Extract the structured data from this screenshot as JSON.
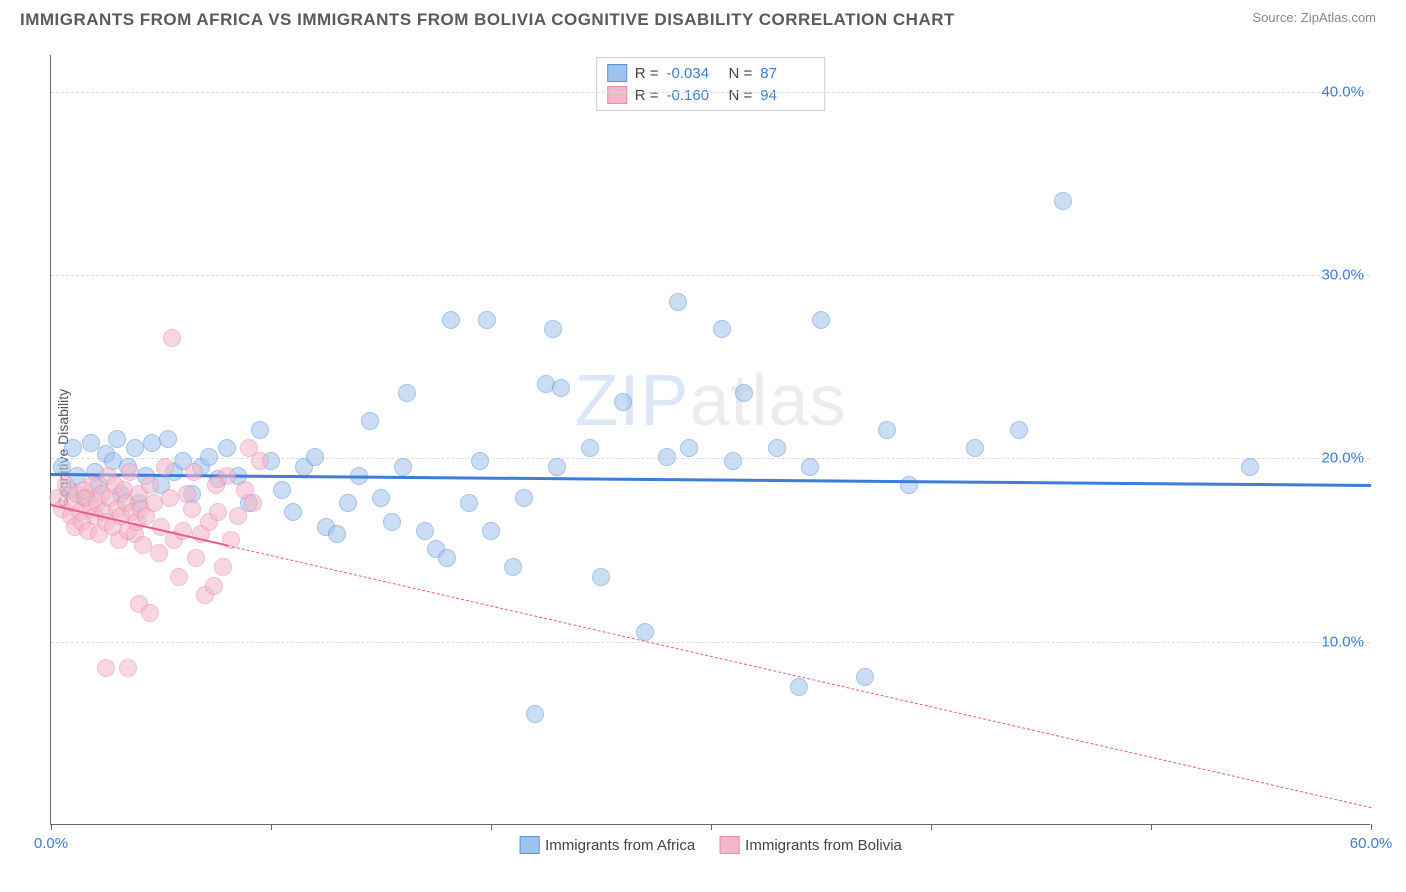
{
  "title": "IMMIGRANTS FROM AFRICA VS IMMIGRANTS FROM BOLIVIA COGNITIVE DISABILITY CORRELATION CHART",
  "source": "Source: ZipAtlas.com",
  "ylabel": "Cognitive Disability",
  "watermark_bold": "ZIP",
  "watermark_thin": "atlas",
  "chart": {
    "type": "scatter",
    "background_color": "#ffffff",
    "grid_color": "#dcdcdc",
    "axis_color": "#666666",
    "xlim": [
      0,
      60
    ],
    "ylim": [
      0,
      42
    ],
    "ytick_values": [
      10,
      20,
      30,
      40
    ],
    "ytick_labels": [
      "10.0%",
      "20.0%",
      "30.0%",
      "40.0%"
    ],
    "xtick_values": [
      0,
      10,
      20,
      30,
      40,
      50,
      60
    ],
    "xtick_labels_shown": {
      "0": "0.0%",
      "60": "60.0%"
    },
    "label_color": "#3b7dd8",
    "label_fontsize": 15,
    "title_fontsize": 17,
    "point_radius": 9,
    "point_opacity": 0.55,
    "series": [
      {
        "name": "Immigrants from Africa",
        "fill_color": "#9fc3ee",
        "stroke_color": "#5a94d8",
        "trend_color": "#3b7dd8",
        "trend_width": 3,
        "trend_dash": "solid",
        "R": "-0.034",
        "N": "87",
        "trend_start": [
          0,
          19.2
        ],
        "trend_end": [
          60,
          18.6
        ],
        "points": [
          [
            0.5,
            19.5
          ],
          [
            0.8,
            18.2
          ],
          [
            1.0,
            20.5
          ],
          [
            1.2,
            19.0
          ],
          [
            1.5,
            17.8
          ],
          [
            1.8,
            20.8
          ],
          [
            2.0,
            19.2
          ],
          [
            2.2,
            18.5
          ],
          [
            2.5,
            20.2
          ],
          [
            2.8,
            19.8
          ],
          [
            3.0,
            21.0
          ],
          [
            3.2,
            18.0
          ],
          [
            3.5,
            19.5
          ],
          [
            3.8,
            20.5
          ],
          [
            4.0,
            17.5
          ],
          [
            4.3,
            19.0
          ],
          [
            4.6,
            20.8
          ],
          [
            5.0,
            18.5
          ],
          [
            5.3,
            21.0
          ],
          [
            5.6,
            19.2
          ],
          [
            6.0,
            19.8
          ],
          [
            6.4,
            18.0
          ],
          [
            6.8,
            19.5
          ],
          [
            7.2,
            20.0
          ],
          [
            7.6,
            18.8
          ],
          [
            8.0,
            20.5
          ],
          [
            8.5,
            19.0
          ],
          [
            9.0,
            17.5
          ],
          [
            9.5,
            21.5
          ],
          [
            10.0,
            19.8
          ],
          [
            10.5,
            18.2
          ],
          [
            11.0,
            17.0
          ],
          [
            11.5,
            19.5
          ],
          [
            12.0,
            20.0
          ],
          [
            12.5,
            16.2
          ],
          [
            13.0,
            15.8
          ],
          [
            13.5,
            17.5
          ],
          [
            14.0,
            19.0
          ],
          [
            14.5,
            22.0
          ],
          [
            15.0,
            17.8
          ],
          [
            15.5,
            16.5
          ],
          [
            16.0,
            19.5
          ],
          [
            16.2,
            23.5
          ],
          [
            17.0,
            16.0
          ],
          [
            17.5,
            15.0
          ],
          [
            18.0,
            14.5
          ],
          [
            18.2,
            27.5
          ],
          [
            19.0,
            17.5
          ],
          [
            19.5,
            19.8
          ],
          [
            19.8,
            27.5
          ],
          [
            20.0,
            16.0
          ],
          [
            21.0,
            14.0
          ],
          [
            21.5,
            17.8
          ],
          [
            22.0,
            6.0
          ],
          [
            22.5,
            24.0
          ],
          [
            22.8,
            27.0
          ],
          [
            23.0,
            19.5
          ],
          [
            23.2,
            23.8
          ],
          [
            24.5,
            20.5
          ],
          [
            25.0,
            13.5
          ],
          [
            26.0,
            23.0
          ],
          [
            27.0,
            10.5
          ],
          [
            28.0,
            20.0
          ],
          [
            28.5,
            28.5
          ],
          [
            29.0,
            20.5
          ],
          [
            30.5,
            27.0
          ],
          [
            31.0,
            19.8
          ],
          [
            31.5,
            23.5
          ],
          [
            33.0,
            20.5
          ],
          [
            34.0,
            7.5
          ],
          [
            34.5,
            19.5
          ],
          [
            35.0,
            27.5
          ],
          [
            37.0,
            8.0
          ],
          [
            38.0,
            21.5
          ],
          [
            39.0,
            18.5
          ],
          [
            42.0,
            20.5
          ],
          [
            44.0,
            21.5
          ],
          [
            46.0,
            34.0
          ],
          [
            54.5,
            19.5
          ]
        ]
      },
      {
        "name": "Immigrants from Bolivia",
        "fill_color": "#f4b6c9",
        "stroke_color": "#e88aa8",
        "trend_color": "#e85d8a",
        "trend_width": 2,
        "trend_dash": "solid_then_dashed",
        "trend_solid_end_x": 8,
        "R": "-0.160",
        "N": "94",
        "trend_start": [
          0,
          17.5
        ],
        "trend_end": [
          60,
          1.0
        ],
        "points": [
          [
            0.3,
            17.8
          ],
          [
            0.5,
            17.2
          ],
          [
            0.7,
            18.5
          ],
          [
            0.9,
            16.8
          ],
          [
            1.0,
            17.5
          ],
          [
            1.1,
            16.2
          ],
          [
            1.2,
            18.0
          ],
          [
            1.3,
            17.0
          ],
          [
            1.4,
            16.5
          ],
          [
            1.5,
            18.2
          ],
          [
            1.6,
            17.8
          ],
          [
            1.7,
            16.0
          ],
          [
            1.8,
            17.2
          ],
          [
            1.9,
            18.5
          ],
          [
            2.0,
            16.8
          ],
          [
            2.1,
            17.5
          ],
          [
            2.2,
            15.8
          ],
          [
            2.3,
            18.0
          ],
          [
            2.4,
            17.0
          ],
          [
            2.5,
            16.5
          ],
          [
            2.6,
            19.0
          ],
          [
            2.7,
            17.8
          ],
          [
            2.8,
            16.2
          ],
          [
            2.9,
            18.5
          ],
          [
            3.0,
            17.2
          ],
          [
            3.1,
            15.5
          ],
          [
            3.2,
            16.8
          ],
          [
            3.3,
            18.2
          ],
          [
            3.4,
            17.5
          ],
          [
            3.5,
            16.0
          ],
          [
            3.6,
            19.2
          ],
          [
            3.7,
            17.0
          ],
          [
            3.8,
            15.8
          ],
          [
            3.9,
            16.5
          ],
          [
            4.0,
            18.0
          ],
          [
            4.1,
            17.2
          ],
          [
            4.2,
            15.2
          ],
          [
            4.3,
            16.8
          ],
          [
            4.5,
            18.5
          ],
          [
            4.7,
            17.5
          ],
          [
            4.9,
            14.8
          ],
          [
            5.0,
            16.2
          ],
          [
            5.2,
            19.5
          ],
          [
            5.4,
            17.8
          ],
          [
            5.6,
            15.5
          ],
          [
            5.8,
            13.5
          ],
          [
            6.0,
            16.0
          ],
          [
            6.2,
            18.0
          ],
          [
            6.4,
            17.2
          ],
          [
            6.6,
            14.5
          ],
          [
            6.8,
            15.8
          ],
          [
            7.0,
            12.5
          ],
          [
            7.2,
            16.5
          ],
          [
            7.4,
            13.0
          ],
          [
            7.6,
            17.0
          ],
          [
            7.8,
            14.0
          ],
          [
            8.0,
            19.0
          ],
          [
            8.2,
            15.5
          ],
          [
            8.5,
            16.8
          ],
          [
            8.8,
            18.2
          ],
          [
            9.0,
            20.5
          ],
          [
            9.2,
            17.5
          ],
          [
            9.5,
            19.8
          ],
          [
            2.5,
            8.5
          ],
          [
            3.5,
            8.5
          ],
          [
            4.0,
            12.0
          ],
          [
            4.5,
            11.5
          ],
          [
            5.5,
            26.5
          ],
          [
            6.5,
            19.2
          ],
          [
            7.5,
            18.5
          ]
        ]
      }
    ]
  },
  "legend_bottom": [
    {
      "label": "Immigrants from Africa",
      "fill": "#9fc3ee",
      "stroke": "#5a94d8"
    },
    {
      "label": "Immigrants from Bolivia",
      "fill": "#f4b6c9",
      "stroke": "#e88aa8"
    }
  ]
}
